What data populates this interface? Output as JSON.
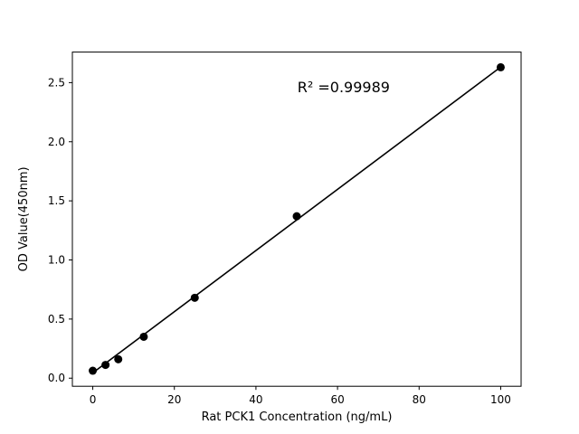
{
  "chart_data": {
    "type": "scatter",
    "title": "",
    "xlabel": "Rat PCK1 Concentration (ng/mL)",
    "ylabel": "OD Value(450nm)",
    "x": [
      0,
      3.125,
      6.25,
      12.5,
      25,
      50,
      100
    ],
    "y": [
      0.063,
      0.112,
      0.16,
      0.35,
      0.68,
      1.37,
      2.63
    ],
    "fit_line": {
      "x": [
        0,
        100
      ],
      "y": [
        0.045,
        2.632
      ]
    },
    "annotation": {
      "text": "R² =0.99989",
      "x": 61.5,
      "y": 2.42
    },
    "xlim": [
      -5,
      105
    ],
    "ylim": [
      -0.0685,
      2.7585
    ],
    "xticks": [
      0,
      20,
      40,
      60,
      80,
      100
    ],
    "xtick_labels": [
      "0",
      "20",
      "40",
      "60",
      "80",
      "100"
    ],
    "yticks": [
      0.0,
      0.5,
      1.0,
      1.5,
      2.0,
      2.5
    ],
    "ytick_labels": [
      "0.0",
      "0.5",
      "1.0",
      "1.5",
      "2.0",
      "2.5"
    ],
    "grid": false,
    "legend_position": null,
    "marker_color": "#000000",
    "line_color": "#000000",
    "axis_color": "#000000",
    "background": "#ffffff"
  }
}
